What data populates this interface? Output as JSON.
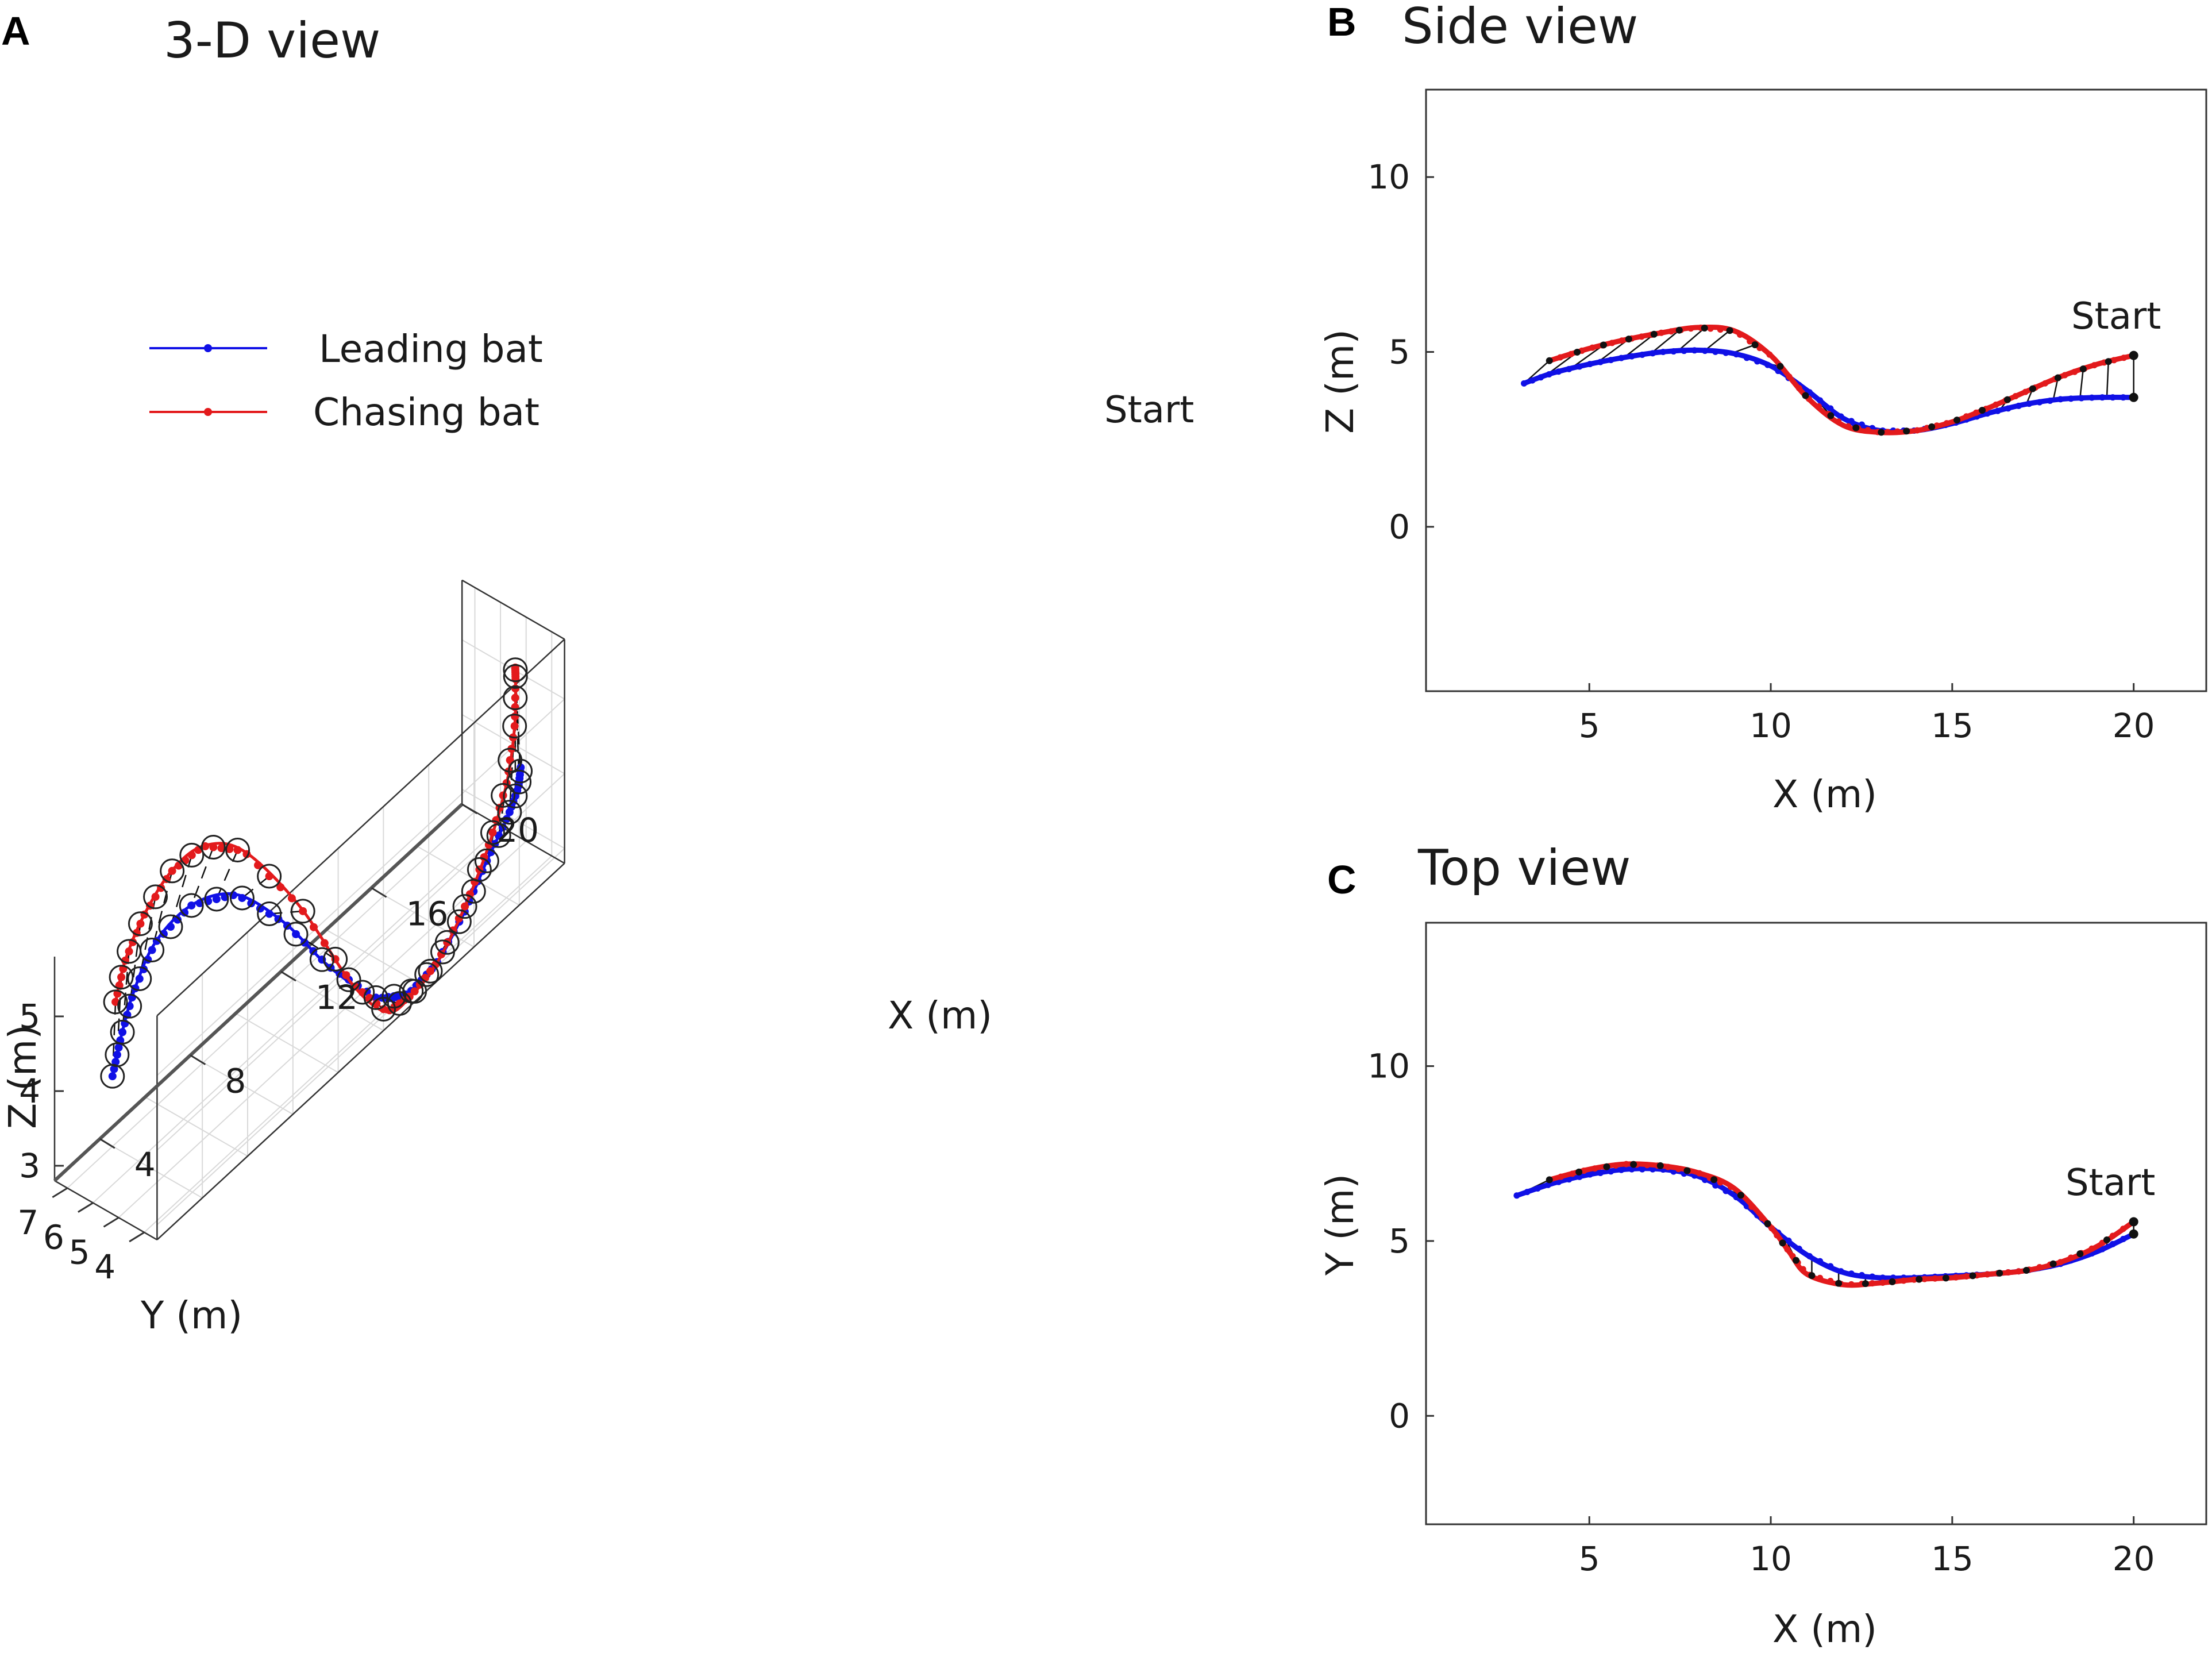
{
  "panels": {
    "a": {
      "letter": "A",
      "title": "3-D view"
    },
    "b": {
      "letter": "B",
      "title": "Side view"
    },
    "c": {
      "letter": "C",
      "title": "Top view"
    }
  },
  "legend": {
    "leading": "Leading bat",
    "chasing": "Chasing bat"
  },
  "start_label": "Start",
  "colors": {
    "leading": "#1010e6",
    "chasing": "#e31a1c",
    "markers": "#111111",
    "axes": "#333333",
    "grid": "#d9d9d9"
  },
  "chart_data": [
    {
      "id": "3d",
      "type": "line",
      "title": "3-D view",
      "xlabel": "X (m)",
      "ylabel": "Y (m)",
      "zlabel": "Z (m)",
      "xlim": [
        2,
        20
      ],
      "ylim": [
        3.5,
        7.5
      ],
      "zlim": [
        2.8,
        5.8
      ],
      "xticks": [
        "4",
        "8",
        "12",
        "16",
        "20"
      ],
      "yticks": [
        "7",
        "6",
        "5",
        "4"
      ],
      "zticks": [
        "5",
        "4",
        "3"
      ],
      "series": [
        {
          "name": "Leading bat",
          "x": [
            3.2,
            3.9,
            4.8,
            6.0,
            7.5,
            9.0,
            10.2,
            11.2,
            12.4,
            13.6,
            14.8,
            16.2,
            17.4,
            18.6,
            19.5,
            20.1
          ],
          "y": [
            6.3,
            6.6,
            6.9,
            7.1,
            7.0,
            6.6,
            5.8,
            4.9,
            4.1,
            3.95,
            3.95,
            4.05,
            4.2,
            4.45,
            4.85,
            5.3
          ],
          "z": [
            4.1,
            4.35,
            4.65,
            4.95,
            5.05,
            4.85,
            4.3,
            3.6,
            3.0,
            2.75,
            2.8,
            3.1,
            3.45,
            3.65,
            3.7,
            3.7
          ]
        },
        {
          "name": "Chasing bat",
          "x": [
            3.9,
            4.6,
            5.6,
            6.8,
            8.0,
            9.2,
            10.3,
            11.3,
            12.5,
            13.7,
            14.9,
            16.3,
            17.5,
            18.6,
            19.5,
            20.1,
            20.2
          ],
          "y": [
            6.8,
            7.05,
            7.2,
            7.2,
            7.0,
            6.5,
            5.3,
            4.1,
            3.8,
            3.9,
            3.95,
            4.05,
            4.2,
            4.5,
            5.0,
            5.5,
            5.6
          ],
          "z": [
            4.8,
            5.1,
            5.4,
            5.65,
            5.7,
            5.4,
            4.6,
            3.5,
            2.85,
            2.72,
            2.82,
            3.2,
            3.65,
            4.1,
            4.5,
            4.85,
            4.95
          ]
        }
      ]
    },
    {
      "id": "side",
      "type": "line",
      "title": "Side view",
      "xlabel": "X (m)",
      "ylabel": "Z (m)",
      "xlim": [
        0.5,
        22
      ],
      "ylim": [
        -4.7,
        12.5
      ],
      "xticks": [
        5,
        10,
        15,
        20
      ],
      "yticks": [
        0,
        5,
        10
      ],
      "series": [
        {
          "name": "Leading bat",
          "x": [
            3.2,
            4.0,
            5.0,
            6.0,
            7.0,
            8.0,
            9.0,
            10.0,
            11.0,
            12.0,
            13.0,
            14.0,
            15.0,
            16.0,
            17.0,
            18.0,
            19.0,
            20.0
          ],
          "y": [
            4.1,
            4.4,
            4.65,
            4.85,
            5.0,
            5.05,
            4.95,
            4.6,
            3.9,
            3.1,
            2.75,
            2.75,
            2.95,
            3.25,
            3.5,
            3.65,
            3.7,
            3.7
          ]
        },
        {
          "name": "Chasing bat",
          "x": [
            3.9,
            5.0,
            6.0,
            7.0,
            8.0,
            9.0,
            10.0,
            11.0,
            12.0,
            13.0,
            14.0,
            15.0,
            16.0,
            17.0,
            18.0,
            19.0,
            20.0
          ],
          "y": [
            4.75,
            5.1,
            5.35,
            5.55,
            5.7,
            5.6,
            4.9,
            3.7,
            2.9,
            2.7,
            2.75,
            3.0,
            3.4,
            3.85,
            4.3,
            4.65,
            4.9
          ]
        }
      ]
    },
    {
      "id": "top",
      "type": "line",
      "title": "Top view",
      "xlabel": "X (m)",
      "ylabel": "Y (m)",
      "xlim": [
        0.5,
        22
      ],
      "ylim": [
        -3.1,
        14.1
      ],
      "xticks": [
        5,
        10,
        15,
        20
      ],
      "yticks": [
        0,
        5,
        10
      ],
      "series": [
        {
          "name": "Leading bat",
          "x": [
            3.0,
            4.0,
            5.0,
            6.0,
            7.0,
            8.0,
            9.0,
            10.0,
            11.0,
            12.0,
            13.0,
            14.0,
            15.0,
            16.0,
            17.0,
            18.0,
            19.0,
            20.0
          ],
          "y": [
            6.3,
            6.65,
            6.9,
            7.05,
            7.05,
            6.85,
            6.3,
            5.4,
            4.6,
            4.1,
            3.95,
            3.95,
            4.0,
            4.05,
            4.15,
            4.35,
            4.7,
            5.2
          ]
        },
        {
          "name": "Chasing bat",
          "x": [
            3.9,
            5.0,
            6.0,
            7.0,
            8.0,
            9.0,
            10.0,
            10.5,
            11.0,
            12.0,
            13.0,
            14.0,
            15.0,
            16.0,
            17.0,
            18.0,
            19.0,
            20.0
          ],
          "y": [
            6.75,
            7.05,
            7.2,
            7.15,
            6.95,
            6.5,
            5.4,
            4.7,
            4.05,
            3.75,
            3.8,
            3.9,
            3.95,
            4.05,
            4.15,
            4.4,
            4.85,
            5.55
          ]
        }
      ]
    }
  ]
}
